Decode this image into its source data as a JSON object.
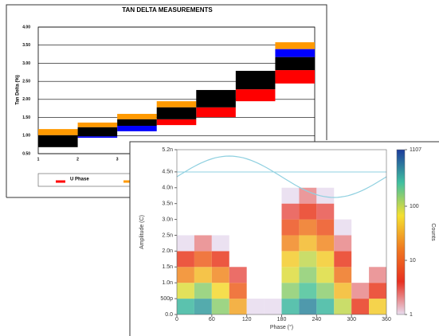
{
  "chart_data": [
    {
      "type": "floating_bar",
      "title": "TAN DELTA MEASUREMENTS",
      "ylabel": "Tan Delta (%)",
      "categories": [
        "1",
        "2",
        "3",
        null,
        null,
        null,
        null
      ],
      "series": [
        {
          "name": "U Phase",
          "color": "#ff0000",
          "values": [
            null,
            null,
            null,
            [
              1.29,
              1.45
            ],
            [
              1.51,
              1.78
            ],
            [
              1.95,
              2.28
            ],
            [
              2.44,
              2.81
            ]
          ]
        },
        {
          "color": "#ff9900",
          "values": [
            [
              1.01,
              1.18
            ],
            [
              1.23,
              1.36
            ],
            [
              1.45,
              1.6
            ],
            [
              1.78,
              1.95
            ],
            null,
            null,
            [
              3.39,
              3.58
            ]
          ]
        },
        {
          "color": "#0000ff",
          "values": [
            null,
            [
              0.94,
              0.98
            ],
            [
              1.12,
              1.27
            ],
            null,
            null,
            null,
            [
              3.17,
              3.39
            ]
          ]
        },
        {
          "color": "#000000",
          "values": [
            [
              0.68,
              1.01
            ],
            [
              0.98,
              1.23
            ],
            [
              1.27,
              1.45
            ],
            [
              1.45,
              1.78
            ],
            [
              1.78,
              2.26
            ],
            [
              2.28,
              2.79
            ],
            [
              2.81,
              3.17
            ]
          ]
        }
      ],
      "ylim": [
        0.5,
        4.0
      ],
      "yticks": [
        {
          "value": 0.5,
          "label": "0.50"
        },
        {
          "value": 1.0,
          "label": "1.00"
        },
        {
          "value": 1.5,
          "label": "1.50"
        },
        {
          "value": 2.0,
          "label": "2.00"
        },
        {
          "value": 2.5,
          "label": "2.50"
        },
        {
          "value": 3.0,
          "label": "3.00"
        },
        {
          "value": 3.5,
          "label": "3.50"
        },
        {
          "value": 4.0,
          "label": "4.00"
        }
      ],
      "grid": true,
      "legend": "bottom"
    },
    {
      "type": "heatmap",
      "xlabel": "Phase (°)",
      "ylabel": "Amplitude (C)",
      "colorbar_label": "Counts",
      "x": [
        0,
        30,
        60,
        90,
        120,
        150,
        180,
        210,
        240,
        270,
        300,
        330,
        360
      ],
      "y": [
        0,
        5e-10,
        1e-09,
        1.5e-09,
        2e-09,
        2.5e-09,
        3e-09,
        3.5e-09,
        4e-09
      ],
      "z": [
        [
          300,
          400,
          150,
          30,
          1,
          1,
          300,
          500,
          300,
          100,
          5,
          50
        ],
        [
          80,
          150,
          60,
          10,
          null,
          null,
          150,
          250,
          150,
          40,
          2,
          5
        ],
        [
          20,
          40,
          20,
          3,
          null,
          null,
          80,
          150,
          80,
          15,
          null,
          2
        ],
        [
          5,
          10,
          5,
          null,
          null,
          null,
          50,
          100,
          50,
          5,
          null,
          null
        ],
        [
          1,
          2,
          1,
          null,
          null,
          null,
          20,
          40,
          20,
          2,
          null,
          null
        ],
        [
          null,
          null,
          null,
          null,
          null,
          null,
          8,
          15,
          8,
          1,
          null,
          null
        ],
        [
          null,
          null,
          null,
          null,
          null,
          null,
          3,
          5,
          3,
          null,
          null,
          null
        ],
        [
          null,
          null,
          null,
          null,
          null,
          null,
          1,
          2,
          1,
          null,
          null,
          null
        ]
      ],
      "xlim": [
        0,
        360
      ],
      "xticks": [
        0,
        60,
        120,
        180,
        240,
        300,
        360
      ],
      "ylim": [
        0,
        5.2e-09
      ],
      "yticks": [
        {
          "value": 0,
          "label": "0.0"
        },
        {
          "value": 5e-10,
          "label": "500p"
        },
        {
          "value": 1e-09,
          "label": "1.0n"
        },
        {
          "value": 1.5e-09,
          "label": "1.5n"
        },
        {
          "value": 2e-09,
          "label": "2.0n"
        },
        {
          "value": 2.5e-09,
          "label": "2.5n"
        },
        {
          "value": 3e-09,
          "label": "3.0n"
        },
        {
          "value": 3.5e-09,
          "label": "3.5n"
        },
        {
          "value": 4e-09,
          "label": "4.0n"
        },
        {
          "value": 4.5e-09,
          "label": "4.5n"
        },
        {
          "value": 5.2e-09,
          "label": "5.2n"
        }
      ],
      "clim": [
        1,
        1107
      ],
      "cticks": [
        1,
        10,
        100,
        1107
      ],
      "color_scale": "log",
      "colormap": [
        "#e8dcef",
        "#e83020",
        "#f07a20",
        "#f4e030",
        "#40c0a0",
        "#1c3c9c"
      ]
    }
  ]
}
